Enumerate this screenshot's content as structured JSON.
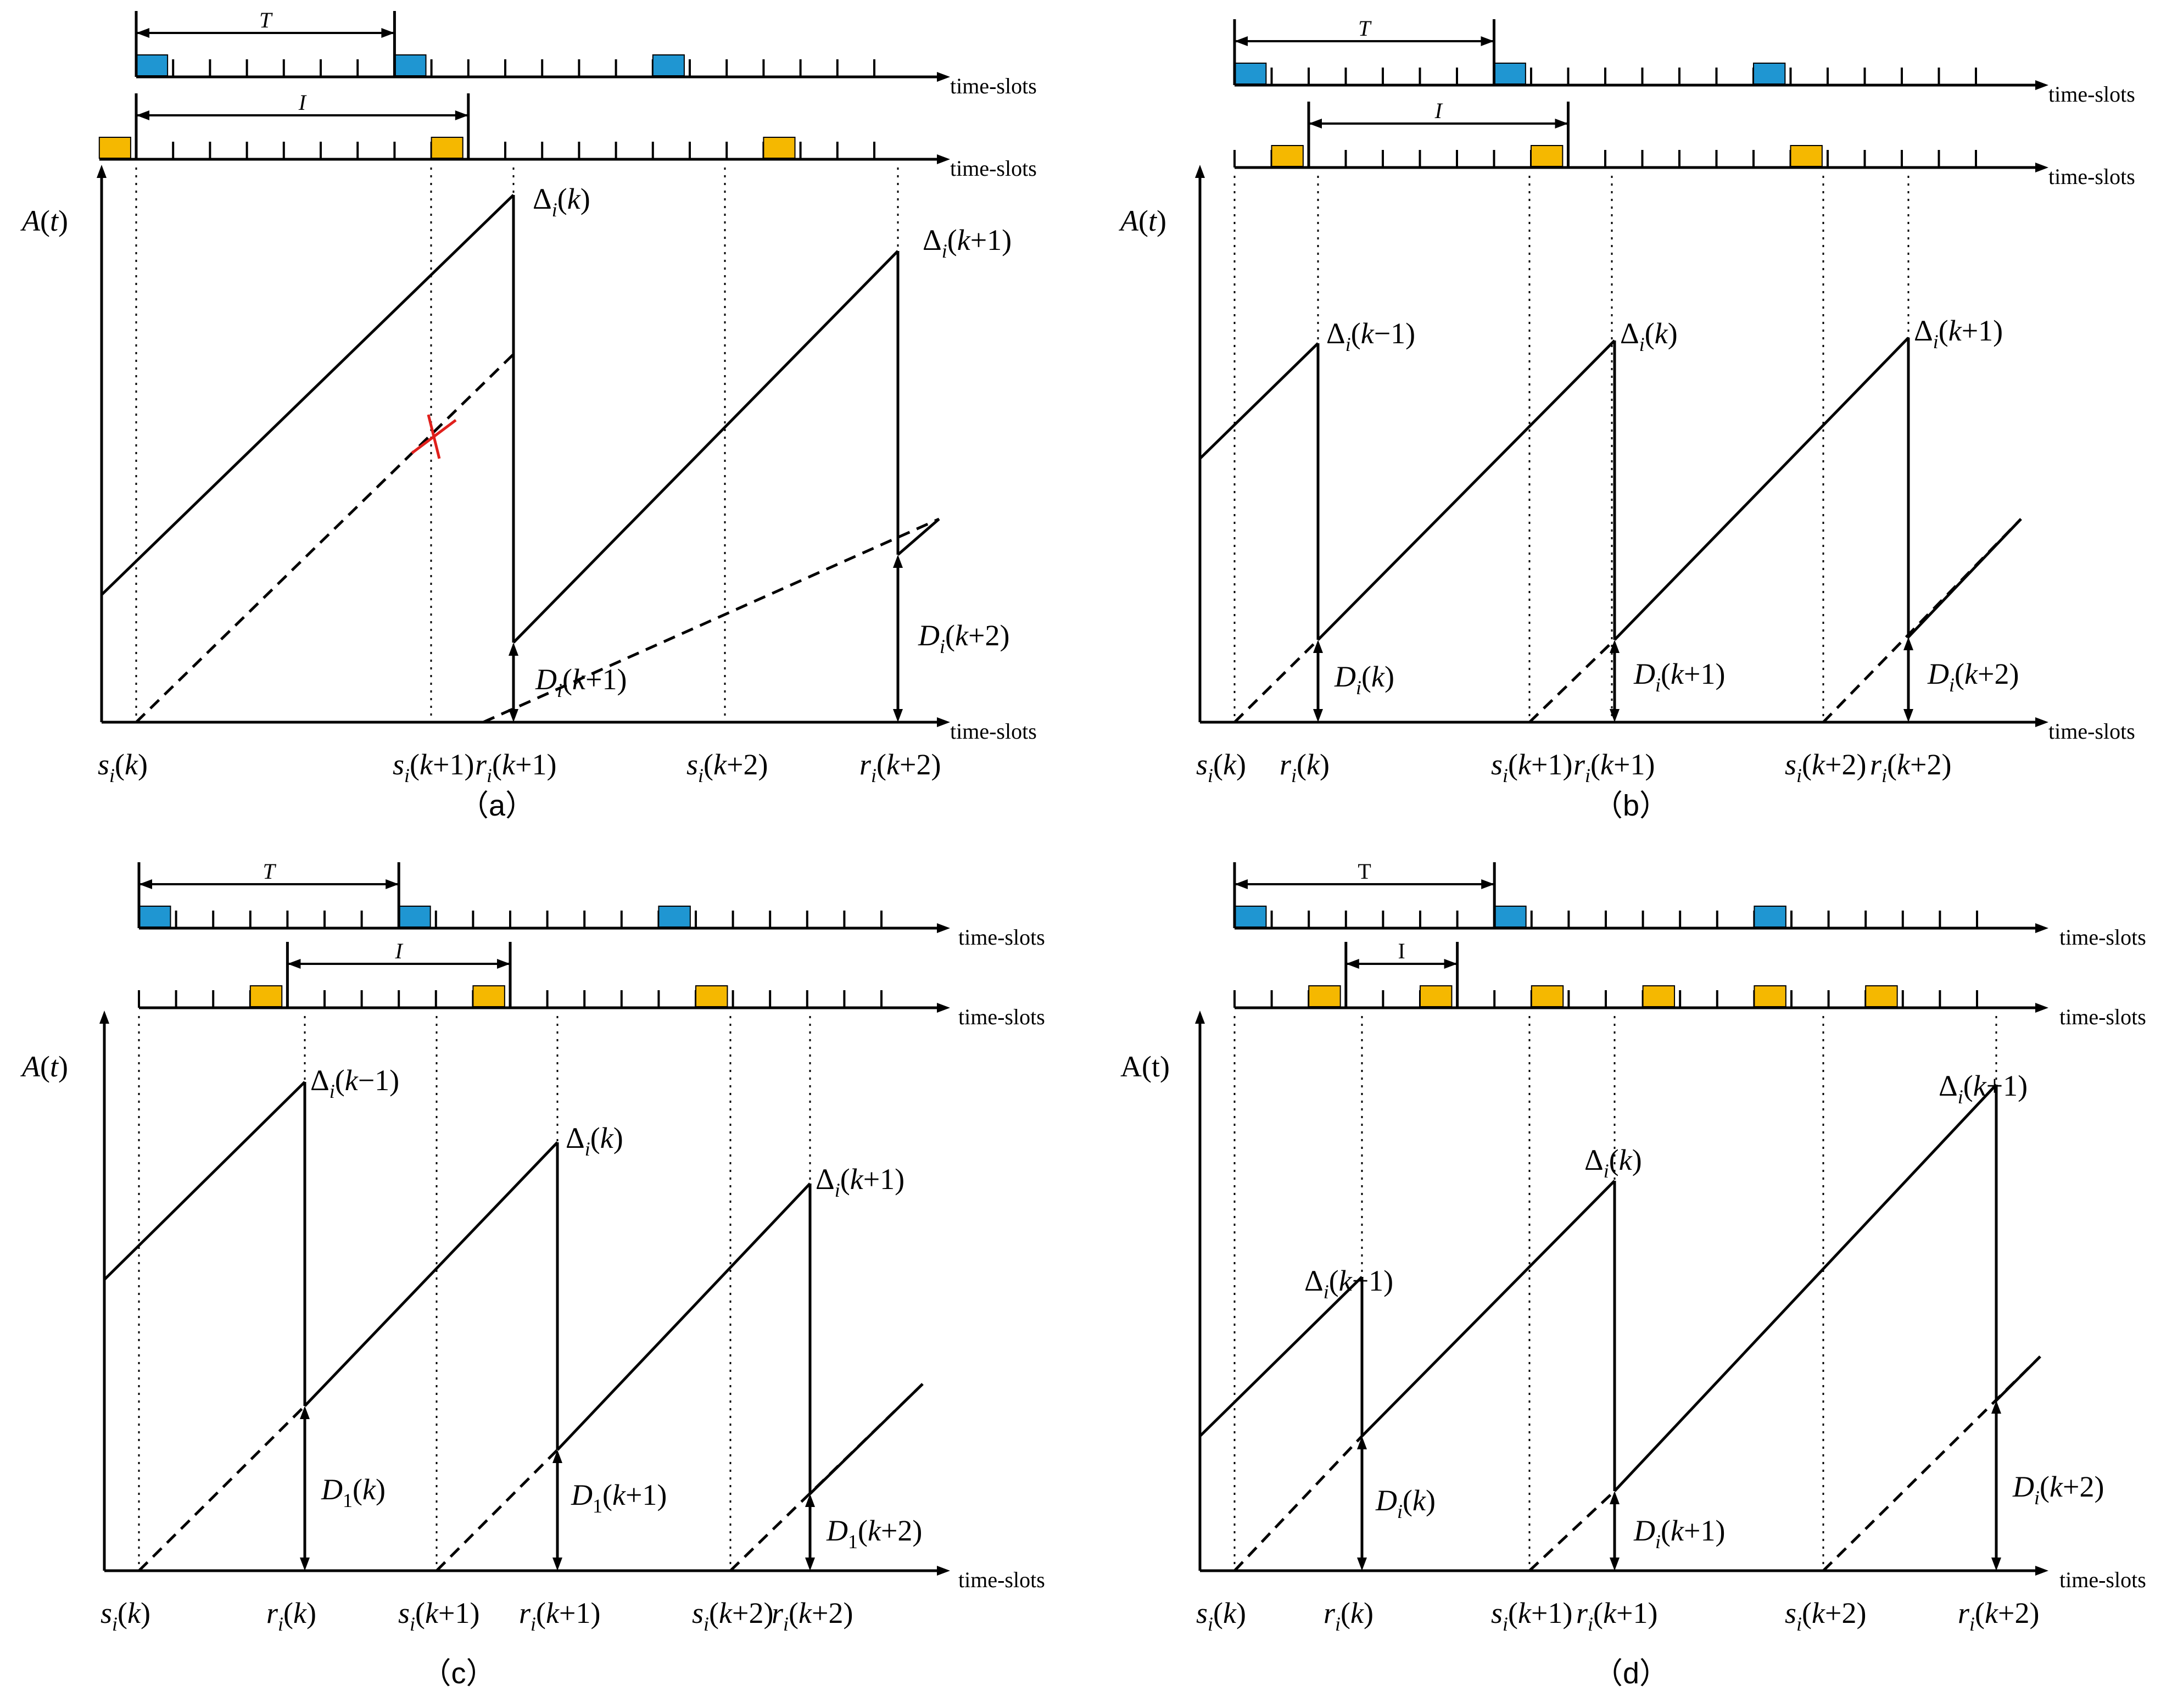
{
  "figure": {
    "time_axis_label": "time-slots",
    "colors": {
      "sample": "#1f96d2",
      "update": "#f5b800",
      "error_mark": "#e0201c",
      "line": "#000000"
    }
  },
  "panels": [
    {
      "id": "a",
      "caption": "（a）",
      "interval_labels": [
        "T",
        "I"
      ],
      "y_label": "A(t)",
      "sample_slots": [
        0,
        7,
        14
      ],
      "update_slots": [
        -1,
        8,
        17
      ],
      "peak_labels": [
        "Δi(k)",
        "Δi(k+1)"
      ],
      "delay_labels": [
        "Di(k+1)",
        "Di(k+2)"
      ],
      "x_tick_labels": [
        "si(k)",
        "si(k+1)",
        "ri(k+1)",
        "si(k+2)",
        "ri(k+2)"
      ]
    },
    {
      "id": "b",
      "caption": "（b）",
      "interval_labels": [
        "T",
        "I"
      ],
      "y_label": "A(t)",
      "sample_slots": [
        0,
        7,
        14
      ],
      "update_slots": [
        1,
        8,
        15
      ],
      "peak_labels": [
        "Δi(k−1)",
        "Δi(k)",
        "Δi(k+1)"
      ],
      "delay_labels": [
        "Di(k)",
        "Di(k+1)",
        "Di(k+2)"
      ],
      "x_tick_labels": [
        "si(k)",
        "ri(k)",
        "si(k+1)",
        "ri(k+1)",
        "si(k+2)",
        "ri(k+2)"
      ]
    },
    {
      "id": "c",
      "caption": "（c）",
      "interval_labels": [
        "T",
        "I"
      ],
      "y_label": "A(t)",
      "sample_slots": [
        0,
        7,
        14
      ],
      "update_slots": [
        3,
        9,
        15
      ],
      "peak_labels": [
        "Δi(k−1)",
        "Δi(k)",
        "Δi(k+1)"
      ],
      "delay_labels": [
        "D1(k)",
        "D1(k+1)",
        "D1(k+2)"
      ],
      "x_tick_labels": [
        "si(k)",
        "ri(k)",
        "si(k+1)",
        "ri(k+1)",
        "si(k+2)",
        "ri(k+2)"
      ]
    },
    {
      "id": "d",
      "caption": "（d）",
      "interval_labels": [
        "T",
        "I"
      ],
      "y_label": "A(t)",
      "sample_slots": [
        0,
        7,
        14
      ],
      "update_slots": [
        2,
        5,
        8,
        11,
        14,
        17
      ],
      "peak_labels": [
        "Δi(k−1)",
        "Δi(k)",
        "Δi(k+1)"
      ],
      "delay_labels": [
        "Di(k)",
        "Di(k+1)",
        "Di(k+2)"
      ],
      "x_tick_labels": [
        "si(k)",
        "ri(k)",
        "si(k+1)",
        "ri(k+1)",
        "si(k+2)",
        "ri(k+2)"
      ]
    }
  ]
}
